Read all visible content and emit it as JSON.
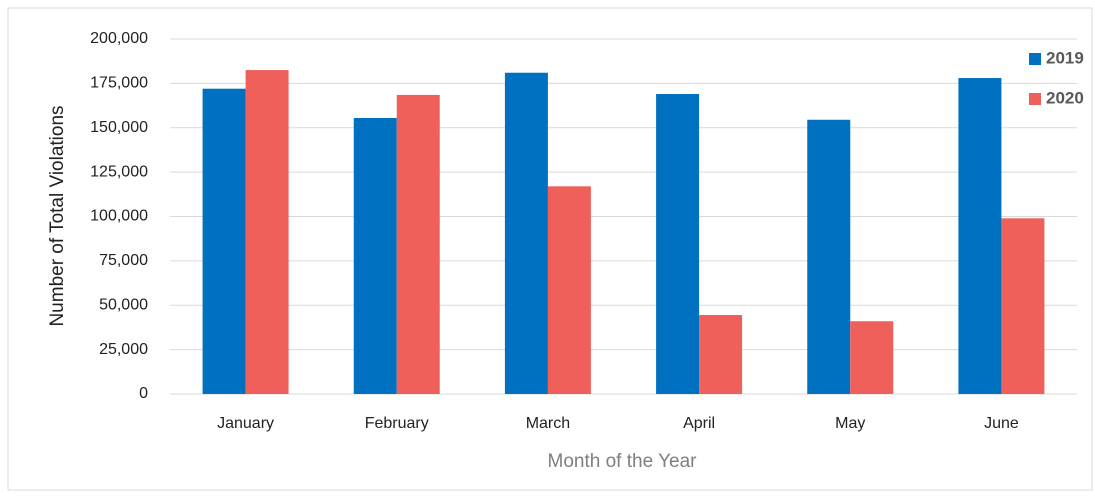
{
  "chart_data": {
    "type": "bar",
    "xlabel": "Month of the Year",
    "ylabel": "Number of Total Violations",
    "categories": [
      "January",
      "February",
      "March",
      "April",
      "May",
      "June"
    ],
    "series": [
      {
        "name": "2019",
        "color": "#0070c0",
        "values": [
          172000,
          155500,
          181000,
          169000,
          154500,
          178000
        ]
      },
      {
        "name": "2020",
        "color": "#f0605a",
        "values": [
          182500,
          168500,
          117000,
          44500,
          41000,
          99000
        ]
      }
    ],
    "ylim": [
      0,
      200000
    ],
    "yticks": [
      0,
      {
        "value": 25000,
        "label": "25,000"
      },
      {
        "value": 50000,
        "label": "50,000"
      },
      {
        "value": 75000,
        "label": "75,000"
      },
      {
        "value": 100000,
        "label": "100,000"
      },
      {
        "value": 125000,
        "label": "125,000"
      },
      {
        "value": 150000,
        "label": "150,000"
      },
      {
        "value": 175000,
        "label": "175,000"
      },
      {
        "value": 200000,
        "label": "200,000"
      }
    ],
    "grid": true,
    "legend": "top-right"
  }
}
